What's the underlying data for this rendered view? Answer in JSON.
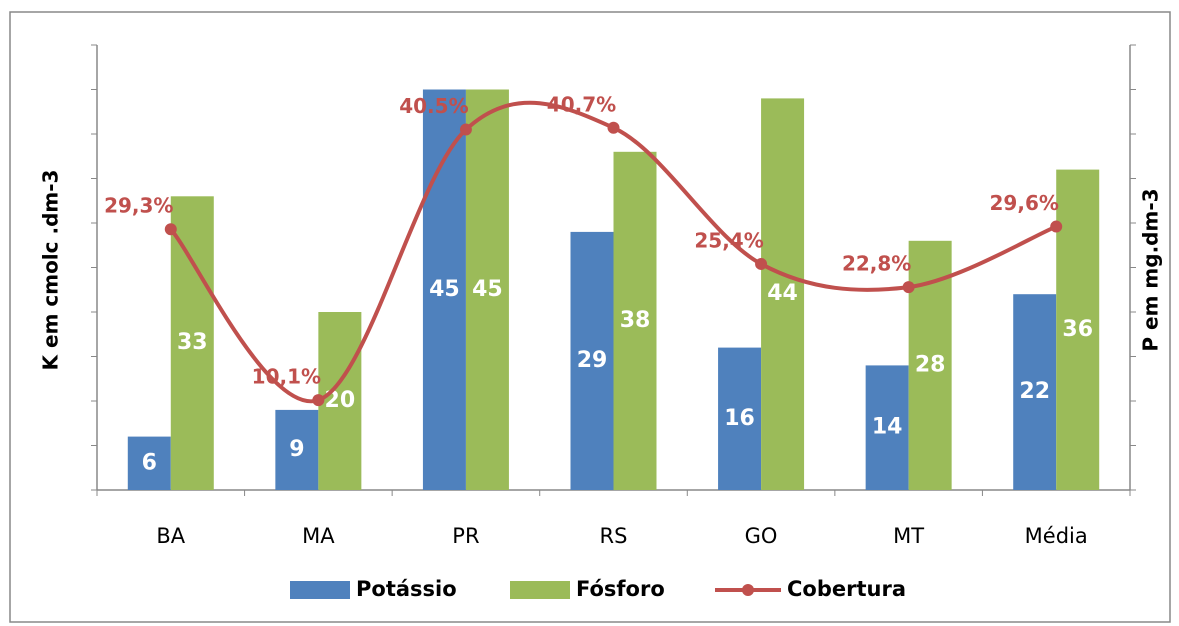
{
  "chart_data": {
    "type": "bar",
    "categories": [
      "BA",
      "MA",
      "PR",
      "RS",
      "GO",
      "MT",
      "Média"
    ],
    "ylabel": "K em cmolc .dm-3",
    "y2label": "P em mg.dm-3",
    "ylim": [
      0,
      50
    ],
    "yticks": [
      0,
      5,
      10,
      15,
      20,
      25,
      30,
      35,
      40,
      45,
      50
    ],
    "y2lim": [
      0,
      50
    ],
    "y2ticks": [
      0,
      5,
      10,
      15,
      20,
      25,
      30,
      35,
      40,
      45,
      50
    ],
    "legend": "bottom",
    "series": [
      {
        "name": "Potássio",
        "color": "#4f81bd",
        "values": [
          6,
          9,
          45,
          29,
          16,
          14,
          22
        ]
      },
      {
        "name": "Fósforo",
        "color": "#9bbb59",
        "axis": "y2",
        "values": [
          33,
          20,
          45,
          38,
          44,
          28,
          36
        ]
      },
      {
        "name": "Cobertura",
        "type": "line",
        "color": "#c0504d",
        "values": [
          29.3,
          10.1,
          40.5,
          40.7,
          25.4,
          22.8,
          29.6
        ],
        "value_labels": [
          "29,3%",
          "10,1%",
          "40.5%",
          "40,7%",
          "25,4%",
          "22,8%",
          "29,6%"
        ]
      }
    ]
  }
}
